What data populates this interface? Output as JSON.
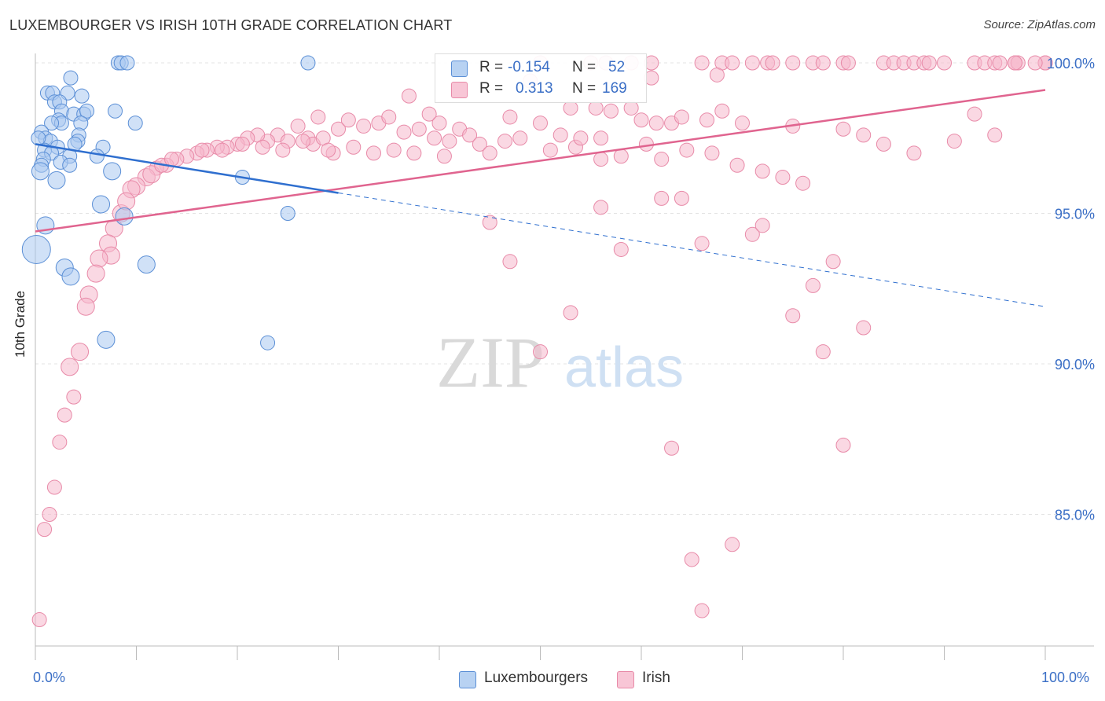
{
  "header": {
    "title": "LUXEMBOURGER VS IRISH 10TH GRADE CORRELATION CHART",
    "source": "Source: ZipAtlas.com"
  },
  "watermark": {
    "zip": "ZIP",
    "atlas": "atlas"
  },
  "legend": {
    "rows": [
      {
        "r_label": "R =",
        "r_value": "-0.154",
        "n_label": "N =",
        "n_value": "52",
        "color": "#a9c8f0"
      },
      {
        "r_label": "R =",
        "r_value": "0.313",
        "n_label": "N =",
        "n_value": "169",
        "color": "#f5b8cc"
      }
    ],
    "bottom": [
      {
        "label": "Luxembourgers",
        "color": "#a9c8f0"
      },
      {
        "label": "Irish",
        "color": "#f5b8cc"
      }
    ]
  },
  "colors": {
    "blue_fill": "#a9c8f0",
    "blue_stroke": "#5b8fd6",
    "blue_line": "#2f6fcf",
    "pink_fill": "#f5b8cc",
    "pink_stroke": "#e88aa8",
    "pink_line": "#e0648f",
    "tick_text": "#3b6fc6",
    "grid": "#e3e3e3"
  },
  "chart_data": {
    "type": "scatter",
    "title": "LUXEMBOURGER VS IRISH 10TH GRADE CORRELATION CHART",
    "ylabel": "10th Grade",
    "xlim": [
      0,
      100
    ],
    "ylim": [
      80.5,
      100.5
    ],
    "x_ticks": [
      0,
      100
    ],
    "x_tick_labels": [
      "0.0%",
      "100.0%"
    ],
    "y_ticks": [
      85,
      90,
      95,
      100
    ],
    "y_tick_labels": [
      "85.0%",
      "90.0%",
      "95.0%",
      "100.0%"
    ],
    "grid": true,
    "series": [
      {
        "name": "Luxembourgers",
        "r": -0.154,
        "n": 52,
        "trend": {
          "x0": 0,
          "y0": 97.3,
          "x1": 100,
          "y1": 91.9,
          "solid_until_x": 30
        },
        "points": [
          [
            8.2,
            100
          ],
          [
            8.5,
            100
          ],
          [
            9.1,
            100
          ],
          [
            27,
            100
          ],
          [
            3.5,
            99.5
          ],
          [
            1.2,
            99
          ],
          [
            1.7,
            99
          ],
          [
            3.2,
            99
          ],
          [
            4.6,
            98.9
          ],
          [
            1.9,
            98.7
          ],
          [
            2.4,
            98.7
          ],
          [
            2.6,
            98.4
          ],
          [
            3.8,
            98.3
          ],
          [
            4.8,
            98.3
          ],
          [
            5.1,
            98.4
          ],
          [
            7.9,
            98.4
          ],
          [
            2.3,
            98.1
          ],
          [
            2.6,
            98.0
          ],
          [
            1.6,
            98.0
          ],
          [
            4.5,
            98.0
          ],
          [
            9.9,
            98.0
          ],
          [
            0.6,
            97.7
          ],
          [
            4.3,
            97.6
          ],
          [
            1.0,
            97.5
          ],
          [
            1.5,
            97.4
          ],
          [
            4.2,
            97.4
          ],
          [
            3.9,
            97.3
          ],
          [
            2.2,
            97.2
          ],
          [
            6.7,
            97.2
          ],
          [
            0.9,
            97.1
          ],
          [
            1.6,
            97.0
          ],
          [
            3.4,
            96.9
          ],
          [
            6.1,
            96.9
          ],
          [
            0.8,
            96.8
          ],
          [
            0.6,
            96.6
          ],
          [
            2.5,
            96.7
          ],
          [
            3.4,
            96.6
          ],
          [
            0.5,
            96.4
          ],
          [
            7.6,
            96.4
          ],
          [
            20.5,
            96.2
          ],
          [
            2.1,
            96.1
          ],
          [
            6.5,
            95.3
          ],
          [
            8.8,
            94.9
          ],
          [
            25,
            95.0
          ],
          [
            1.0,
            94.6
          ],
          [
            0.1,
            93.8
          ],
          [
            2.9,
            93.2
          ],
          [
            11,
            93.3
          ],
          [
            3.5,
            92.9
          ],
          [
            7.0,
            90.8
          ],
          [
            23,
            90.7
          ],
          [
            0.3,
            97.5
          ]
        ]
      },
      {
        "name": "Irish",
        "r": 0.313,
        "n": 169,
        "trend": {
          "x0": 0,
          "y0": 94.4,
          "x1": 100,
          "y1": 99.1
        },
        "points": [
          [
            50,
            100
          ],
          [
            55,
            100
          ],
          [
            56.5,
            100
          ],
          [
            59,
            100
          ],
          [
            61,
            100
          ],
          [
            66,
            100
          ],
          [
            68,
            100
          ],
          [
            69,
            100
          ],
          [
            71,
            100
          ],
          [
            72.5,
            100
          ],
          [
            73,
            100
          ],
          [
            75,
            100
          ],
          [
            77,
            100
          ],
          [
            78,
            100
          ],
          [
            80,
            100
          ],
          [
            80.5,
            100
          ],
          [
            84,
            100
          ],
          [
            85,
            100
          ],
          [
            86,
            100
          ],
          [
            87,
            100
          ],
          [
            88,
            100
          ],
          [
            88.5,
            100
          ],
          [
            90,
            100
          ],
          [
            93,
            100
          ],
          [
            94,
            100
          ],
          [
            95,
            100
          ],
          [
            95.5,
            100
          ],
          [
            97,
            100
          ],
          [
            100,
            100
          ],
          [
            97.3,
            100
          ],
          [
            100,
            100
          ],
          [
            99,
            100
          ],
          [
            97,
            100
          ],
          [
            49,
            99.4
          ],
          [
            61,
            99.5
          ],
          [
            67.5,
            99.6
          ],
          [
            37,
            98.9
          ],
          [
            39,
            98.3
          ],
          [
            40,
            98.0
          ],
          [
            47,
            98.2
          ],
          [
            59,
            98.5
          ],
          [
            68,
            98.4
          ],
          [
            93,
            98.3
          ],
          [
            50,
            98.0
          ],
          [
            53,
            98.5
          ],
          [
            55.5,
            98.5
          ],
          [
            57,
            98.4
          ],
          [
            60,
            98.1
          ],
          [
            61.5,
            98.0
          ],
          [
            63,
            98.0
          ],
          [
            64,
            98.2
          ],
          [
            66.5,
            98.1
          ],
          [
            70,
            98.0
          ],
          [
            75,
            97.9
          ],
          [
            80,
            97.8
          ],
          [
            82,
            97.6
          ],
          [
            84,
            97.3
          ],
          [
            87,
            97.0
          ],
          [
            91,
            97.4
          ],
          [
            95,
            97.6
          ],
          [
            28,
            98.2
          ],
          [
            30,
            97.8
          ],
          [
            31,
            98.1
          ],
          [
            32.5,
            97.9
          ],
          [
            34,
            98.0
          ],
          [
            35,
            98.2
          ],
          [
            36.5,
            97.7
          ],
          [
            38,
            97.8
          ],
          [
            39.5,
            97.5
          ],
          [
            41,
            97.4
          ],
          [
            42,
            97.8
          ],
          [
            43,
            97.6
          ],
          [
            44,
            97.3
          ],
          [
            46.5,
            97.4
          ],
          [
            48,
            97.5
          ],
          [
            51,
            97.1
          ],
          [
            52,
            97.6
          ],
          [
            53.5,
            97.2
          ],
          [
            56,
            97.5
          ],
          [
            58,
            96.9
          ],
          [
            60.5,
            97.3
          ],
          [
            62,
            96.8
          ],
          [
            64.5,
            97.1
          ],
          [
            67,
            97.0
          ],
          [
            69.5,
            96.6
          ],
          [
            72,
            96.4
          ],
          [
            74,
            96.2
          ],
          [
            76,
            96.0
          ],
          [
            24,
            97.6
          ],
          [
            25,
            97.4
          ],
          [
            26,
            97.9
          ],
          [
            27,
            97.5
          ],
          [
            27.5,
            97.3
          ],
          [
            28.5,
            97.5
          ],
          [
            29.5,
            97.0
          ],
          [
            23,
            97.4
          ],
          [
            22,
            97.6
          ],
          [
            21,
            97.5
          ],
          [
            20,
            97.3
          ],
          [
            19,
            97.2
          ],
          [
            18,
            97.2
          ],
          [
            17,
            97.1
          ],
          [
            16,
            97.0
          ],
          [
            15,
            96.9
          ],
          [
            14,
            96.8
          ],
          [
            13,
            96.6
          ],
          [
            12,
            96.5
          ],
          [
            11,
            96.2
          ],
          [
            10,
            95.9
          ],
          [
            9.5,
            95.8
          ],
          [
            11.5,
            96.3
          ],
          [
            12.5,
            96.6
          ],
          [
            13.5,
            96.8
          ],
          [
            16.5,
            97.1
          ],
          [
            18.5,
            97.1
          ],
          [
            20.5,
            97.3
          ],
          [
            22.5,
            97.2
          ],
          [
            24.5,
            97.1
          ],
          [
            26.5,
            97.4
          ],
          [
            29,
            97.1
          ],
          [
            31.5,
            97.2
          ],
          [
            33.5,
            97.0
          ],
          [
            35.5,
            97.1
          ],
          [
            37.5,
            97.0
          ],
          [
            40.5,
            96.9
          ],
          [
            45,
            97.0
          ],
          [
            8.5,
            95.0
          ],
          [
            9,
            95.4
          ],
          [
            7.8,
            94.5
          ],
          [
            7.2,
            94.0
          ],
          [
            7.5,
            93.6
          ],
          [
            6.3,
            93.5
          ],
          [
            6,
            93.0
          ],
          [
            5.3,
            92.3
          ],
          [
            5,
            91.9
          ],
          [
            4.4,
            90.4
          ],
          [
            3.4,
            89.9
          ],
          [
            3.8,
            88.9
          ],
          [
            2.9,
            88.3
          ],
          [
            2.4,
            87.4
          ],
          [
            1.9,
            85.9
          ],
          [
            1.4,
            85.0
          ],
          [
            0.9,
            84.5
          ],
          [
            0.4,
            81.5
          ],
          [
            47,
            93.4
          ],
          [
            45,
            94.7
          ],
          [
            56,
            95.2
          ],
          [
            58,
            93.8
          ],
          [
            62,
            95.5
          ],
          [
            64,
            95.5
          ],
          [
            66,
            94.0
          ],
          [
            71,
            94.3
          ],
          [
            72,
            94.6
          ],
          [
            77,
            92.6
          ],
          [
            79,
            93.4
          ],
          [
            50,
            90.4
          ],
          [
            53,
            91.7
          ],
          [
            75,
            91.6
          ],
          [
            78,
            90.4
          ],
          [
            82,
            91.2
          ],
          [
            63,
            87.2
          ],
          [
            80,
            87.3
          ],
          [
            69,
            84.0
          ],
          [
            65,
            83.5
          ],
          [
            66,
            81.8
          ],
          [
            54,
            97.5
          ],
          [
            56,
            96.8
          ]
        ]
      }
    ]
  }
}
